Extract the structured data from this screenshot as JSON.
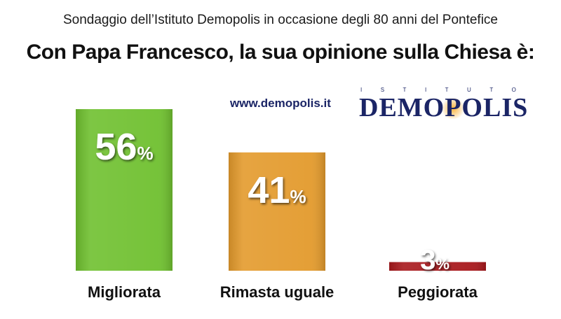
{
  "header": {
    "subtitle": "Sondaggio dell’Istituto Demopolis in occasione degli 80 anni del Pontefice",
    "title": "Con Papa Francesco, la sua opinione sulla Chiesa è:"
  },
  "branding": {
    "website": "www.demopolis.it",
    "logo_top": "ISTITUTO",
    "logo_main": "DEMOPOLIS"
  },
  "chart_data": {
    "type": "bar",
    "categories": [
      "Migliorata",
      "Rimasta uguale",
      "Peggiorata"
    ],
    "values": [
      56,
      41,
      3
    ],
    "unit": "%",
    "colors": [
      "#6fc02f",
      "#e39a2c",
      "#a8181c"
    ],
    "ylim": [
      0,
      60
    ]
  }
}
